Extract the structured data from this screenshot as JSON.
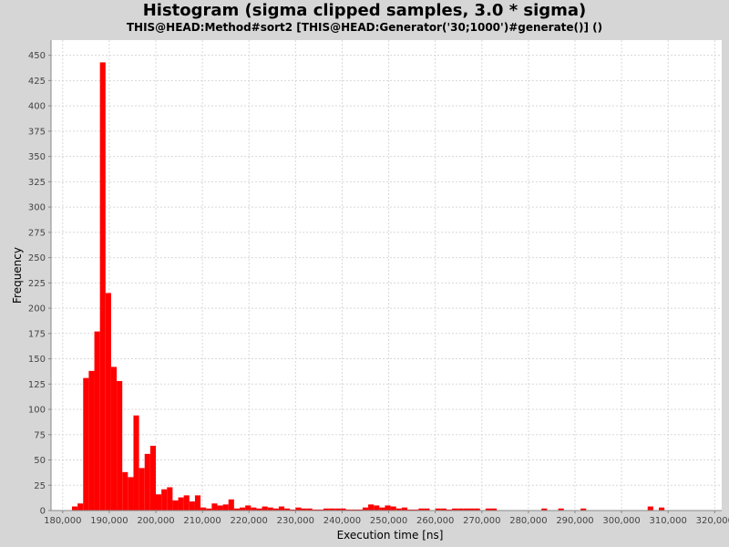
{
  "chart_data": {
    "type": "bar",
    "title": "Histogram (sigma clipped samples, 3.0 * sigma)",
    "subtitle": "THIS@HEAD:Method#sort2 [THIS@HEAD:Generator('30;1000')#generate()] ()",
    "xlabel": "Execution time [ns]",
    "ylabel": "Frequency",
    "xlim": [
      177500,
      321500
    ],
    "ylim": [
      0,
      465
    ],
    "x_ticks": [
      180000,
      190000,
      200000,
      210000,
      220000,
      230000,
      240000,
      250000,
      260000,
      270000,
      280000,
      290000,
      300000,
      310000,
      320000
    ],
    "x_tick_labels": [
      "180,000",
      "190,000",
      "200,000",
      "210,000",
      "220,000",
      "230,000",
      "240,000",
      "250,000",
      "260,000",
      "270,000",
      "280,000",
      "290,000",
      "300,000",
      "310,000",
      "320,000"
    ],
    "y_ticks": [
      0,
      25,
      50,
      75,
      100,
      125,
      150,
      175,
      200,
      225,
      250,
      275,
      300,
      325,
      350,
      375,
      400,
      425,
      450
    ],
    "grid": true,
    "bar_color": "#ff0000",
    "background_color": "#ffffff",
    "bin_width": 1200,
    "bins": [
      [
        182000,
        4
      ],
      [
        183200,
        7
      ],
      [
        184400,
        131
      ],
      [
        185600,
        138
      ],
      [
        186800,
        177
      ],
      [
        188000,
        443
      ],
      [
        189200,
        215
      ],
      [
        190400,
        142
      ],
      [
        191600,
        128
      ],
      [
        192800,
        38
      ],
      [
        194000,
        33
      ],
      [
        195200,
        94
      ],
      [
        196400,
        42
      ],
      [
        197600,
        56
      ],
      [
        198800,
        64
      ],
      [
        200000,
        16
      ],
      [
        201200,
        21
      ],
      [
        202400,
        23
      ],
      [
        203600,
        10
      ],
      [
        204800,
        13
      ],
      [
        206000,
        15
      ],
      [
        207200,
        9
      ],
      [
        208400,
        15
      ],
      [
        209600,
        3
      ],
      [
        210800,
        2
      ],
      [
        212000,
        7
      ],
      [
        213200,
        5
      ],
      [
        214400,
        6
      ],
      [
        215600,
        11
      ],
      [
        216800,
        2
      ],
      [
        218000,
        3
      ],
      [
        219200,
        5
      ],
      [
        220400,
        3
      ],
      [
        221600,
        2
      ],
      [
        222800,
        4
      ],
      [
        224000,
        3
      ],
      [
        225200,
        2
      ],
      [
        226400,
        4
      ],
      [
        227600,
        2
      ],
      [
        228800,
        1
      ],
      [
        230000,
        3
      ],
      [
        231200,
        2
      ],
      [
        232400,
        2
      ],
      [
        233600,
        1
      ],
      [
        234800,
        1
      ],
      [
        236000,
        2
      ],
      [
        237200,
        2
      ],
      [
        238400,
        2
      ],
      [
        239600,
        2
      ],
      [
        240800,
        1
      ],
      [
        242000,
        1
      ],
      [
        243200,
        1
      ],
      [
        244400,
        3
      ],
      [
        245600,
        6
      ],
      [
        246800,
        5
      ],
      [
        248000,
        3
      ],
      [
        249200,
        5
      ],
      [
        250400,
        4
      ],
      [
        251600,
        2
      ],
      [
        252800,
        3
      ],
      [
        254000,
        1
      ],
      [
        255200,
        1
      ],
      [
        256400,
        2
      ],
      [
        257600,
        2
      ],
      [
        260000,
        2
      ],
      [
        261200,
        2
      ],
      [
        262400,
        1
      ],
      [
        263600,
        2
      ],
      [
        264800,
        2
      ],
      [
        266000,
        2
      ],
      [
        267200,
        2
      ],
      [
        268400,
        2
      ],
      [
        270800,
        2
      ],
      [
        272000,
        2
      ],
      [
        282800,
        2
      ],
      [
        286400,
        2
      ],
      [
        291200,
        2
      ],
      [
        305600,
        4
      ],
      [
        308000,
        3
      ]
    ]
  }
}
